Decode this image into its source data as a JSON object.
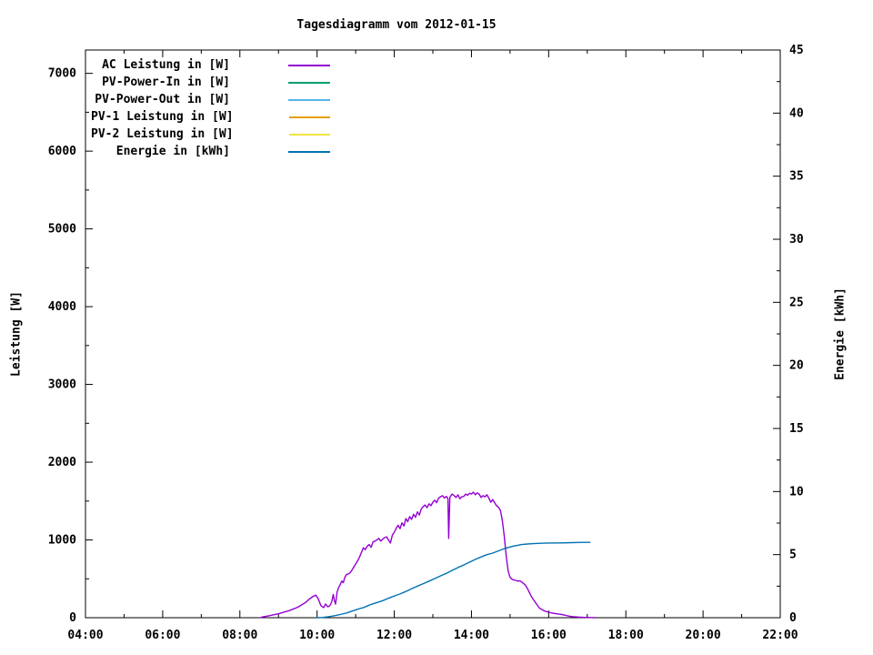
{
  "chart_data": {
    "type": "line",
    "title": "Tagesdiagramm vom 2012-01-15",
    "background": "#ffffff",
    "frame_color": "#000000",
    "grid": false,
    "legend_position": "top-left-inside",
    "x_axis": {
      "range_hours": [
        4,
        22
      ],
      "major_step_hours": 2,
      "minor_step_hours": 1,
      "tick_labels": [
        "04:00",
        "06:00",
        "08:00",
        "10:00",
        "12:00",
        "14:00",
        "16:00",
        "18:00",
        "20:00",
        "22:00"
      ]
    },
    "y_left": {
      "label": "Leistung [W]",
      "range": [
        0,
        7300
      ],
      "tick_values": [
        0,
        1000,
        2000,
        3000,
        4000,
        5000,
        6000,
        7000
      ],
      "tick_labels": [
        "0",
        "1000",
        "2000",
        "3000",
        "4000",
        "5000",
        "6000",
        "7000"
      ],
      "minor_step": 500
    },
    "y_right": {
      "label": "Energie [kWh]",
      "range": [
        0,
        45
      ],
      "tick_values": [
        0,
        5,
        10,
        15,
        20,
        25,
        30,
        35,
        40,
        45
      ],
      "tick_labels": [
        "0",
        "5",
        "10",
        "15",
        "20",
        "25",
        "30",
        "35",
        "40",
        "45"
      ],
      "minor_step": 2.5
    },
    "series": [
      {
        "id": "ac-leistung",
        "name": "AC Leistung in [W]",
        "color": "#9400D3",
        "axis": "left",
        "points": [
          [
            8.52,
            0
          ],
          [
            8.6,
            10
          ],
          [
            8.75,
            25
          ],
          [
            8.9,
            40
          ],
          [
            9.0,
            50
          ],
          [
            9.1,
            65
          ],
          [
            9.2,
            80
          ],
          [
            9.3,
            95
          ],
          [
            9.4,
            115
          ],
          [
            9.5,
            135
          ],
          [
            9.6,
            165
          ],
          [
            9.7,
            195
          ],
          [
            9.8,
            240
          ],
          [
            9.9,
            275
          ],
          [
            9.97,
            290
          ],
          [
            10.03,
            245
          ],
          [
            10.1,
            155
          ],
          [
            10.17,
            130
          ],
          [
            10.22,
            175
          ],
          [
            10.28,
            140
          ],
          [
            10.33,
            155
          ],
          [
            10.38,
            205
          ],
          [
            10.42,
            300
          ],
          [
            10.45,
            215
          ],
          [
            10.48,
            175
          ],
          [
            10.52,
            330
          ],
          [
            10.56,
            390
          ],
          [
            10.6,
            425
          ],
          [
            10.64,
            470
          ],
          [
            10.68,
            450
          ],
          [
            10.72,
            520
          ],
          [
            10.76,
            555
          ],
          [
            10.8,
            560
          ],
          [
            10.85,
            575
          ],
          [
            10.9,
            610
          ],
          [
            10.95,
            650
          ],
          [
            11.0,
            690
          ],
          [
            11.05,
            730
          ],
          [
            11.1,
            780
          ],
          [
            11.15,
            840
          ],
          [
            11.2,
            900
          ],
          [
            11.25,
            875
          ],
          [
            11.3,
            920
          ],
          [
            11.35,
            940
          ],
          [
            11.4,
            905
          ],
          [
            11.45,
            975
          ],
          [
            11.5,
            985
          ],
          [
            11.55,
            1000
          ],
          [
            11.6,
            1020
          ],
          [
            11.65,
            985
          ],
          [
            11.7,
            1010
          ],
          [
            11.75,
            1030
          ],
          [
            11.8,
            1040
          ],
          [
            11.85,
            1000
          ],
          [
            11.9,
            960
          ],
          [
            11.95,
            1060
          ],
          [
            12.0,
            1100
          ],
          [
            12.05,
            1150
          ],
          [
            12.1,
            1190
          ],
          [
            12.15,
            1145
          ],
          [
            12.2,
            1220
          ],
          [
            12.25,
            1180
          ],
          [
            12.3,
            1275
          ],
          [
            12.35,
            1235
          ],
          [
            12.4,
            1300
          ],
          [
            12.45,
            1265
          ],
          [
            12.5,
            1330
          ],
          [
            12.55,
            1290
          ],
          [
            12.6,
            1360
          ],
          [
            12.65,
            1320
          ],
          [
            12.7,
            1400
          ],
          [
            12.75,
            1430
          ],
          [
            12.8,
            1450
          ],
          [
            12.85,
            1415
          ],
          [
            12.9,
            1465
          ],
          [
            12.95,
            1440
          ],
          [
            13.0,
            1485
          ],
          [
            13.05,
            1510
          ],
          [
            13.1,
            1480
          ],
          [
            13.15,
            1540
          ],
          [
            13.2,
            1555
          ],
          [
            13.25,
            1570
          ],
          [
            13.3,
            1540
          ],
          [
            13.35,
            1560
          ],
          [
            13.39,
            1530
          ],
          [
            13.41,
            1020
          ],
          [
            13.44,
            1550
          ],
          [
            13.5,
            1590
          ],
          [
            13.55,
            1570
          ],
          [
            13.6,
            1545
          ],
          [
            13.65,
            1580
          ],
          [
            13.7,
            1530
          ],
          [
            13.75,
            1555
          ],
          [
            13.8,
            1560
          ],
          [
            13.85,
            1590
          ],
          [
            13.9,
            1575
          ],
          [
            13.95,
            1600
          ],
          [
            14.0,
            1590
          ],
          [
            14.05,
            1615
          ],
          [
            14.1,
            1580
          ],
          [
            14.15,
            1605
          ],
          [
            14.2,
            1590
          ],
          [
            14.25,
            1545
          ],
          [
            14.3,
            1570
          ],
          [
            14.35,
            1555
          ],
          [
            14.4,
            1580
          ],
          [
            14.45,
            1540
          ],
          [
            14.5,
            1485
          ],
          [
            14.55,
            1520
          ],
          [
            14.6,
            1480
          ],
          [
            14.65,
            1440
          ],
          [
            14.7,
            1420
          ],
          [
            14.75,
            1380
          ],
          [
            14.8,
            1250
          ],
          [
            14.85,
            1050
          ],
          [
            14.9,
            800
          ],
          [
            14.95,
            600
          ],
          [
            15.0,
            520
          ],
          [
            15.05,
            495
          ],
          [
            15.1,
            485
          ],
          [
            15.15,
            480
          ],
          [
            15.2,
            470
          ],
          [
            15.25,
            475
          ],
          [
            15.3,
            460
          ],
          [
            15.35,
            440
          ],
          [
            15.4,
            415
          ],
          [
            15.45,
            375
          ],
          [
            15.5,
            325
          ],
          [
            15.55,
            275
          ],
          [
            15.6,
            235
          ],
          [
            15.65,
            200
          ],
          [
            15.7,
            165
          ],
          [
            15.75,
            130
          ],
          [
            15.8,
            112
          ],
          [
            15.85,
            98
          ],
          [
            15.9,
            85
          ],
          [
            16.0,
            70
          ],
          [
            16.1,
            60
          ],
          [
            16.2,
            50
          ],
          [
            16.3,
            45
          ],
          [
            16.4,
            35
          ],
          [
            16.5,
            22
          ],
          [
            16.6,
            14
          ],
          [
            16.7,
            10
          ],
          [
            16.8,
            7
          ],
          [
            16.9,
            5
          ],
          [
            17.0,
            4
          ],
          [
            17.1,
            2
          ],
          [
            17.2,
            0
          ]
        ]
      },
      {
        "id": "pv-power-in",
        "name": "PV-Power-In in [W]",
        "color": "#009E73",
        "axis": "left",
        "points": []
      },
      {
        "id": "pv-power-out",
        "name": "PV-Power-Out in [W]",
        "color": "#56B4E9",
        "axis": "left",
        "points": []
      },
      {
        "id": "pv1-leistung",
        "name": "PV-1 Leistung in [W]",
        "color": "#E69F00",
        "axis": "left",
        "points": []
      },
      {
        "id": "pv2-leistung",
        "name": "PV-2 Leistung in [W]",
        "color": "#F0E442",
        "axis": "left",
        "points": []
      },
      {
        "id": "energie",
        "name": "Energie in [kWh]",
        "color": "#0072B2",
        "axis": "right",
        "points": [
          [
            10.0,
            0
          ],
          [
            10.15,
            0.02
          ],
          [
            10.3,
            0.08
          ],
          [
            10.45,
            0.16
          ],
          [
            10.6,
            0.25
          ],
          [
            10.75,
            0.36
          ],
          [
            10.9,
            0.52
          ],
          [
            11.0,
            0.62
          ],
          [
            11.1,
            0.72
          ],
          [
            11.2,
            0.8
          ],
          [
            11.3,
            0.92
          ],
          [
            11.4,
            1.05
          ],
          [
            11.5,
            1.15
          ],
          [
            11.6,
            1.25
          ],
          [
            11.7,
            1.35
          ],
          [
            11.8,
            1.48
          ],
          [
            11.9,
            1.6
          ],
          [
            12.0,
            1.72
          ],
          [
            12.15,
            1.88
          ],
          [
            12.3,
            2.08
          ],
          [
            12.45,
            2.3
          ],
          [
            12.6,
            2.5
          ],
          [
            12.75,
            2.7
          ],
          [
            12.9,
            2.9
          ],
          [
            13.05,
            3.1
          ],
          [
            13.2,
            3.32
          ],
          [
            13.35,
            3.52
          ],
          [
            13.5,
            3.75
          ],
          [
            13.65,
            3.97
          ],
          [
            13.8,
            4.18
          ],
          [
            13.95,
            4.4
          ],
          [
            14.1,
            4.62
          ],
          [
            14.25,
            4.82
          ],
          [
            14.4,
            5.0
          ],
          [
            14.55,
            5.12
          ],
          [
            14.7,
            5.3
          ],
          [
            14.85,
            5.47
          ],
          [
            15.0,
            5.6
          ],
          [
            15.1,
            5.68
          ],
          [
            15.2,
            5.74
          ],
          [
            15.3,
            5.8
          ],
          [
            15.45,
            5.84
          ],
          [
            15.6,
            5.87
          ],
          [
            15.8,
            5.9
          ],
          [
            16.0,
            5.92
          ],
          [
            16.3,
            5.93
          ],
          [
            16.6,
            5.95
          ],
          [
            16.9,
            5.97
          ],
          [
            17.07,
            5.97
          ]
        ]
      }
    ]
  }
}
